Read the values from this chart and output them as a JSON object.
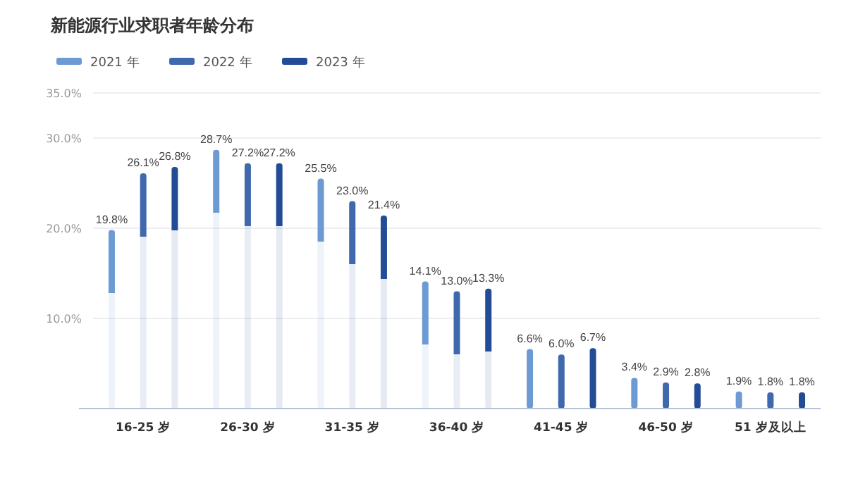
{
  "chart_data": {
    "type": "bar",
    "title": "新能源行业求职者年龄分布",
    "categories": [
      "16-25 岁",
      "26-30 岁",
      "31-35 岁",
      "36-40 岁",
      "41-45 岁",
      "46-50 岁",
      "51 岁及以上"
    ],
    "series": [
      {
        "name": "2021 年",
        "color": "#6b9bd2",
        "values": [
          19.8,
          28.7,
          25.5,
          14.1,
          6.6,
          3.4,
          1.9
        ],
        "value_labels": [
          "19.8%",
          "28.7%",
          "25.5%",
          "14.1%",
          "6.6%",
          "3.4%",
          "1.9%"
        ]
      },
      {
        "name": "2022 年",
        "color": "#3f68ad",
        "values": [
          26.1,
          27.2,
          23.0,
          13.0,
          6.0,
          2.9,
          1.8
        ],
        "value_labels": [
          "26.1%",
          "27.2%",
          "23.0%",
          "13.0%",
          "6.0%",
          "2.9%",
          "1.8%"
        ]
      },
      {
        "name": "2023 年",
        "color": "#234c97",
        "values": [
          26.8,
          27.2,
          21.4,
          13.3,
          6.7,
          2.8,
          1.8
        ],
        "value_labels": [
          "26.8%",
          "27.2%",
          "21.4%",
          "13.3%",
          "6.7%",
          "2.8%",
          "1.8%"
        ]
      }
    ],
    "ylim": [
      0,
      35
    ],
    "yticks": [
      {
        "value": 10,
        "label": "10.0%"
      },
      {
        "value": 20,
        "label": "20.0%"
      },
      {
        "value": 30,
        "label": "30.0%"
      },
      {
        "value": 35,
        "label": "35.0%"
      }
    ],
    "grid": "y",
    "legend": "top left"
  }
}
